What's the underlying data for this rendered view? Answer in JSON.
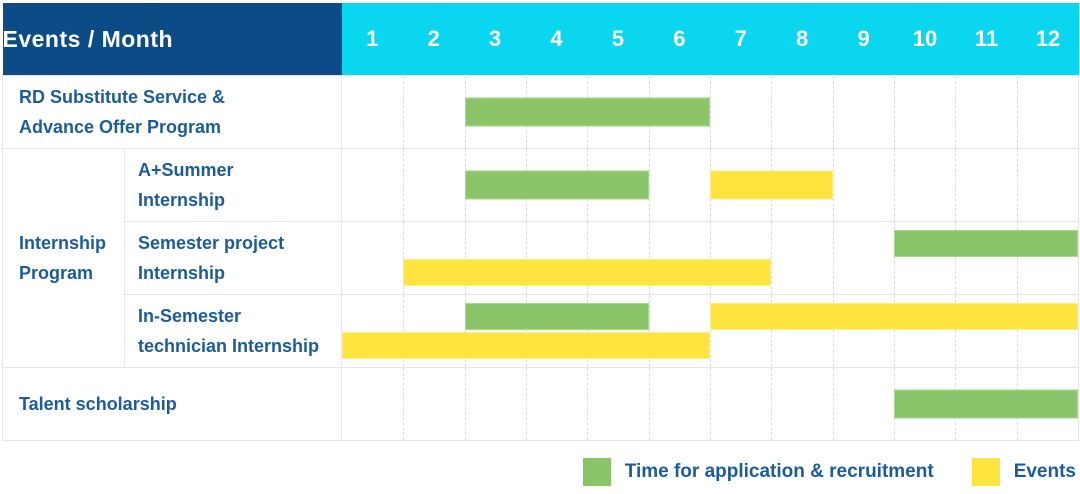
{
  "title": "Events / Month",
  "months": [
    "1",
    "2",
    "3",
    "4",
    "5",
    "6",
    "7",
    "8",
    "9",
    "10",
    "11",
    "12"
  ],
  "group": {
    "label": "Internship\nProgram"
  },
  "rows": [
    {
      "label": "RD Substitute Service &\nAdvance Offer Program",
      "lines": [
        [
          {
            "color": "green",
            "start": 3,
            "end": 6
          }
        ]
      ]
    },
    {
      "label": "A+Summer\nInternship",
      "lines": [
        [
          {
            "color": "green",
            "start": 3,
            "end": 5
          },
          {
            "color": "yellow",
            "start": 7,
            "end": 8
          }
        ]
      ]
    },
    {
      "label": "Semester project\nInternship",
      "lines": [
        [
          {
            "color": "green",
            "start": 10,
            "end": 12
          }
        ],
        [
          {
            "color": "yellow",
            "start": 2,
            "end": 7
          }
        ]
      ]
    },
    {
      "label": "In-Semester\ntechnician Internship",
      "lines": [
        [
          {
            "color": "green",
            "start": 3,
            "end": 5
          },
          {
            "color": "yellow",
            "start": 7,
            "end": 12
          }
        ],
        [
          {
            "color": "yellow",
            "start": 1,
            "end": 6
          }
        ]
      ]
    },
    {
      "label": "Talent scholarship",
      "lines": [
        [
          {
            "color": "green",
            "start": 10,
            "end": 12
          }
        ]
      ]
    }
  ],
  "legend": [
    {
      "color": "green",
      "label": "Time for application & recruitment"
    },
    {
      "color": "yellow",
      "label": "Events"
    }
  ],
  "colors": {
    "header_bg": "#0b4c86",
    "months_bg": "#0bd6f0",
    "text_blue": "#1b5c9c",
    "green": "#8bc56a",
    "yellow": "#ffe33e"
  },
  "chart_data": {
    "type": "table",
    "title": "Events / Month",
    "x": [
      1,
      2,
      3,
      4,
      5,
      6,
      7,
      8,
      9,
      10,
      11,
      12
    ],
    "legend_position": "bottom-right",
    "series": [
      {
        "name": "RD Substitute Service & Advance Offer Program",
        "application_recruitment_months": [
          [
            3,
            6
          ]
        ],
        "event_months": []
      },
      {
        "name": "Internship Program - A+Summer Internship",
        "application_recruitment_months": [
          [
            3,
            5
          ]
        ],
        "event_months": [
          [
            7,
            8
          ]
        ]
      },
      {
        "name": "Internship Program - Semester project Internship",
        "application_recruitment_months": [
          [
            10,
            12
          ]
        ],
        "event_months": [
          [
            2,
            7
          ]
        ]
      },
      {
        "name": "Internship Program - In-Semester technician Internship",
        "application_recruitment_months": [
          [
            3,
            5
          ]
        ],
        "event_months": [
          [
            7,
            12
          ],
          [
            1,
            6
          ]
        ]
      },
      {
        "name": "Talent scholarship",
        "application_recruitment_months": [
          [
            10,
            12
          ]
        ],
        "event_months": []
      }
    ]
  }
}
